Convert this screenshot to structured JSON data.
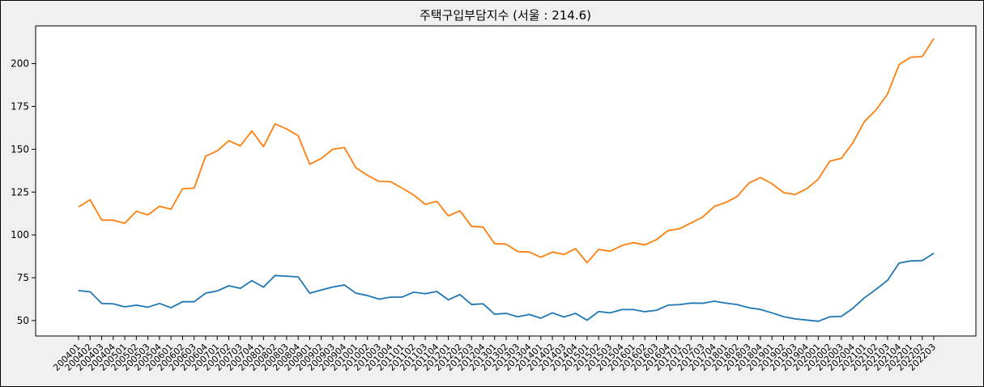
{
  "chart_data": {
    "type": "line",
    "title": "주택구입부담지수 (서울 : 214.6)",
    "xlabel": "",
    "ylabel": "",
    "ylim": [
      41,
      222
    ],
    "yticks": [
      50,
      75,
      100,
      125,
      150,
      175,
      200
    ],
    "grid": false,
    "x": [
      "200401",
      "200402",
      "200403",
      "200404",
      "200501",
      "200502",
      "200503",
      "200504",
      "200601",
      "200602",
      "200603",
      "200604",
      "200701",
      "200702",
      "200703",
      "200704",
      "200801",
      "200802",
      "200803",
      "200804",
      "200901",
      "200902",
      "200903",
      "200904",
      "201001",
      "201002",
      "201003",
      "201004",
      "201101",
      "201102",
      "201103",
      "201104",
      "201201",
      "201202",
      "201203",
      "201204",
      "201301",
      "201302",
      "201303",
      "201304",
      "201401",
      "201402",
      "201403",
      "201404",
      "201501",
      "201502",
      "201503",
      "201504",
      "201601",
      "201602",
      "201603",
      "201604",
      "201701",
      "201702",
      "201703",
      "201704",
      "201801",
      "201802",
      "201803",
      "201804",
      "201901",
      "201902",
      "201903",
      "201904",
      "202001",
      "202002",
      "202003",
      "202004",
      "202101",
      "202102",
      "202103",
      "202104",
      "202201",
      "202202",
      "202203"
    ],
    "series": [
      {
        "color": "#1f77b4",
        "values": [
          67.5,
          66.8,
          60,
          59.8,
          58,
          59,
          57.8,
          60,
          57.5,
          61,
          61,
          66,
          67.3,
          70.3,
          68.8,
          73.3,
          69.5,
          76.3,
          75.9,
          75.5,
          66,
          67.8,
          69.6,
          70.8,
          66,
          64.6,
          62.5,
          63.7,
          63.7,
          66.6,
          65.7,
          67,
          62.1,
          65.2,
          59.4,
          59.8,
          53.7,
          54.2,
          52.2,
          53.6,
          51.4,
          54.5,
          52.1,
          54.2,
          50.2,
          55.3,
          54.5,
          56.4,
          56.4,
          55.2,
          56,
          59,
          59.3,
          60.2,
          60.1,
          61.3,
          60.2,
          59.3,
          57.5,
          56.5,
          54.5,
          52.3,
          51,
          50.3,
          49.6,
          52.2,
          52.4,
          57.2,
          63.3,
          68.2,
          73.5,
          83.6,
          84.8,
          85,
          89.3
        ]
      },
      {
        "color": "#ff7f0e",
        "values": [
          116.3,
          120.5,
          108.7,
          108.6,
          106.8,
          113.8,
          111.7,
          116.7,
          115,
          127,
          127.3,
          146,
          149,
          155,
          152,
          160.7,
          151.5,
          164.8,
          161.9,
          157.9,
          141.3,
          144.6,
          150,
          151,
          139.2,
          134.8,
          131.2,
          131.1,
          127.3,
          123.3,
          117.8,
          119.6,
          111.1,
          114.1,
          105,
          104.6,
          94.9,
          94.6,
          90.3,
          90,
          87,
          90,
          88.6,
          92,
          83.8,
          91.5,
          90.5,
          93.8,
          95.5,
          94.2,
          97.2,
          102.5,
          103.6,
          107,
          110.4,
          116.6,
          118.9,
          122.5,
          130.3,
          133.5,
          129.9,
          124.7,
          123.6,
          126.9,
          132.5,
          143,
          144.7,
          153.8,
          166.2,
          172.9,
          182.3,
          199.4,
          203.7,
          204.1,
          214.6
        ]
      }
    ]
  }
}
